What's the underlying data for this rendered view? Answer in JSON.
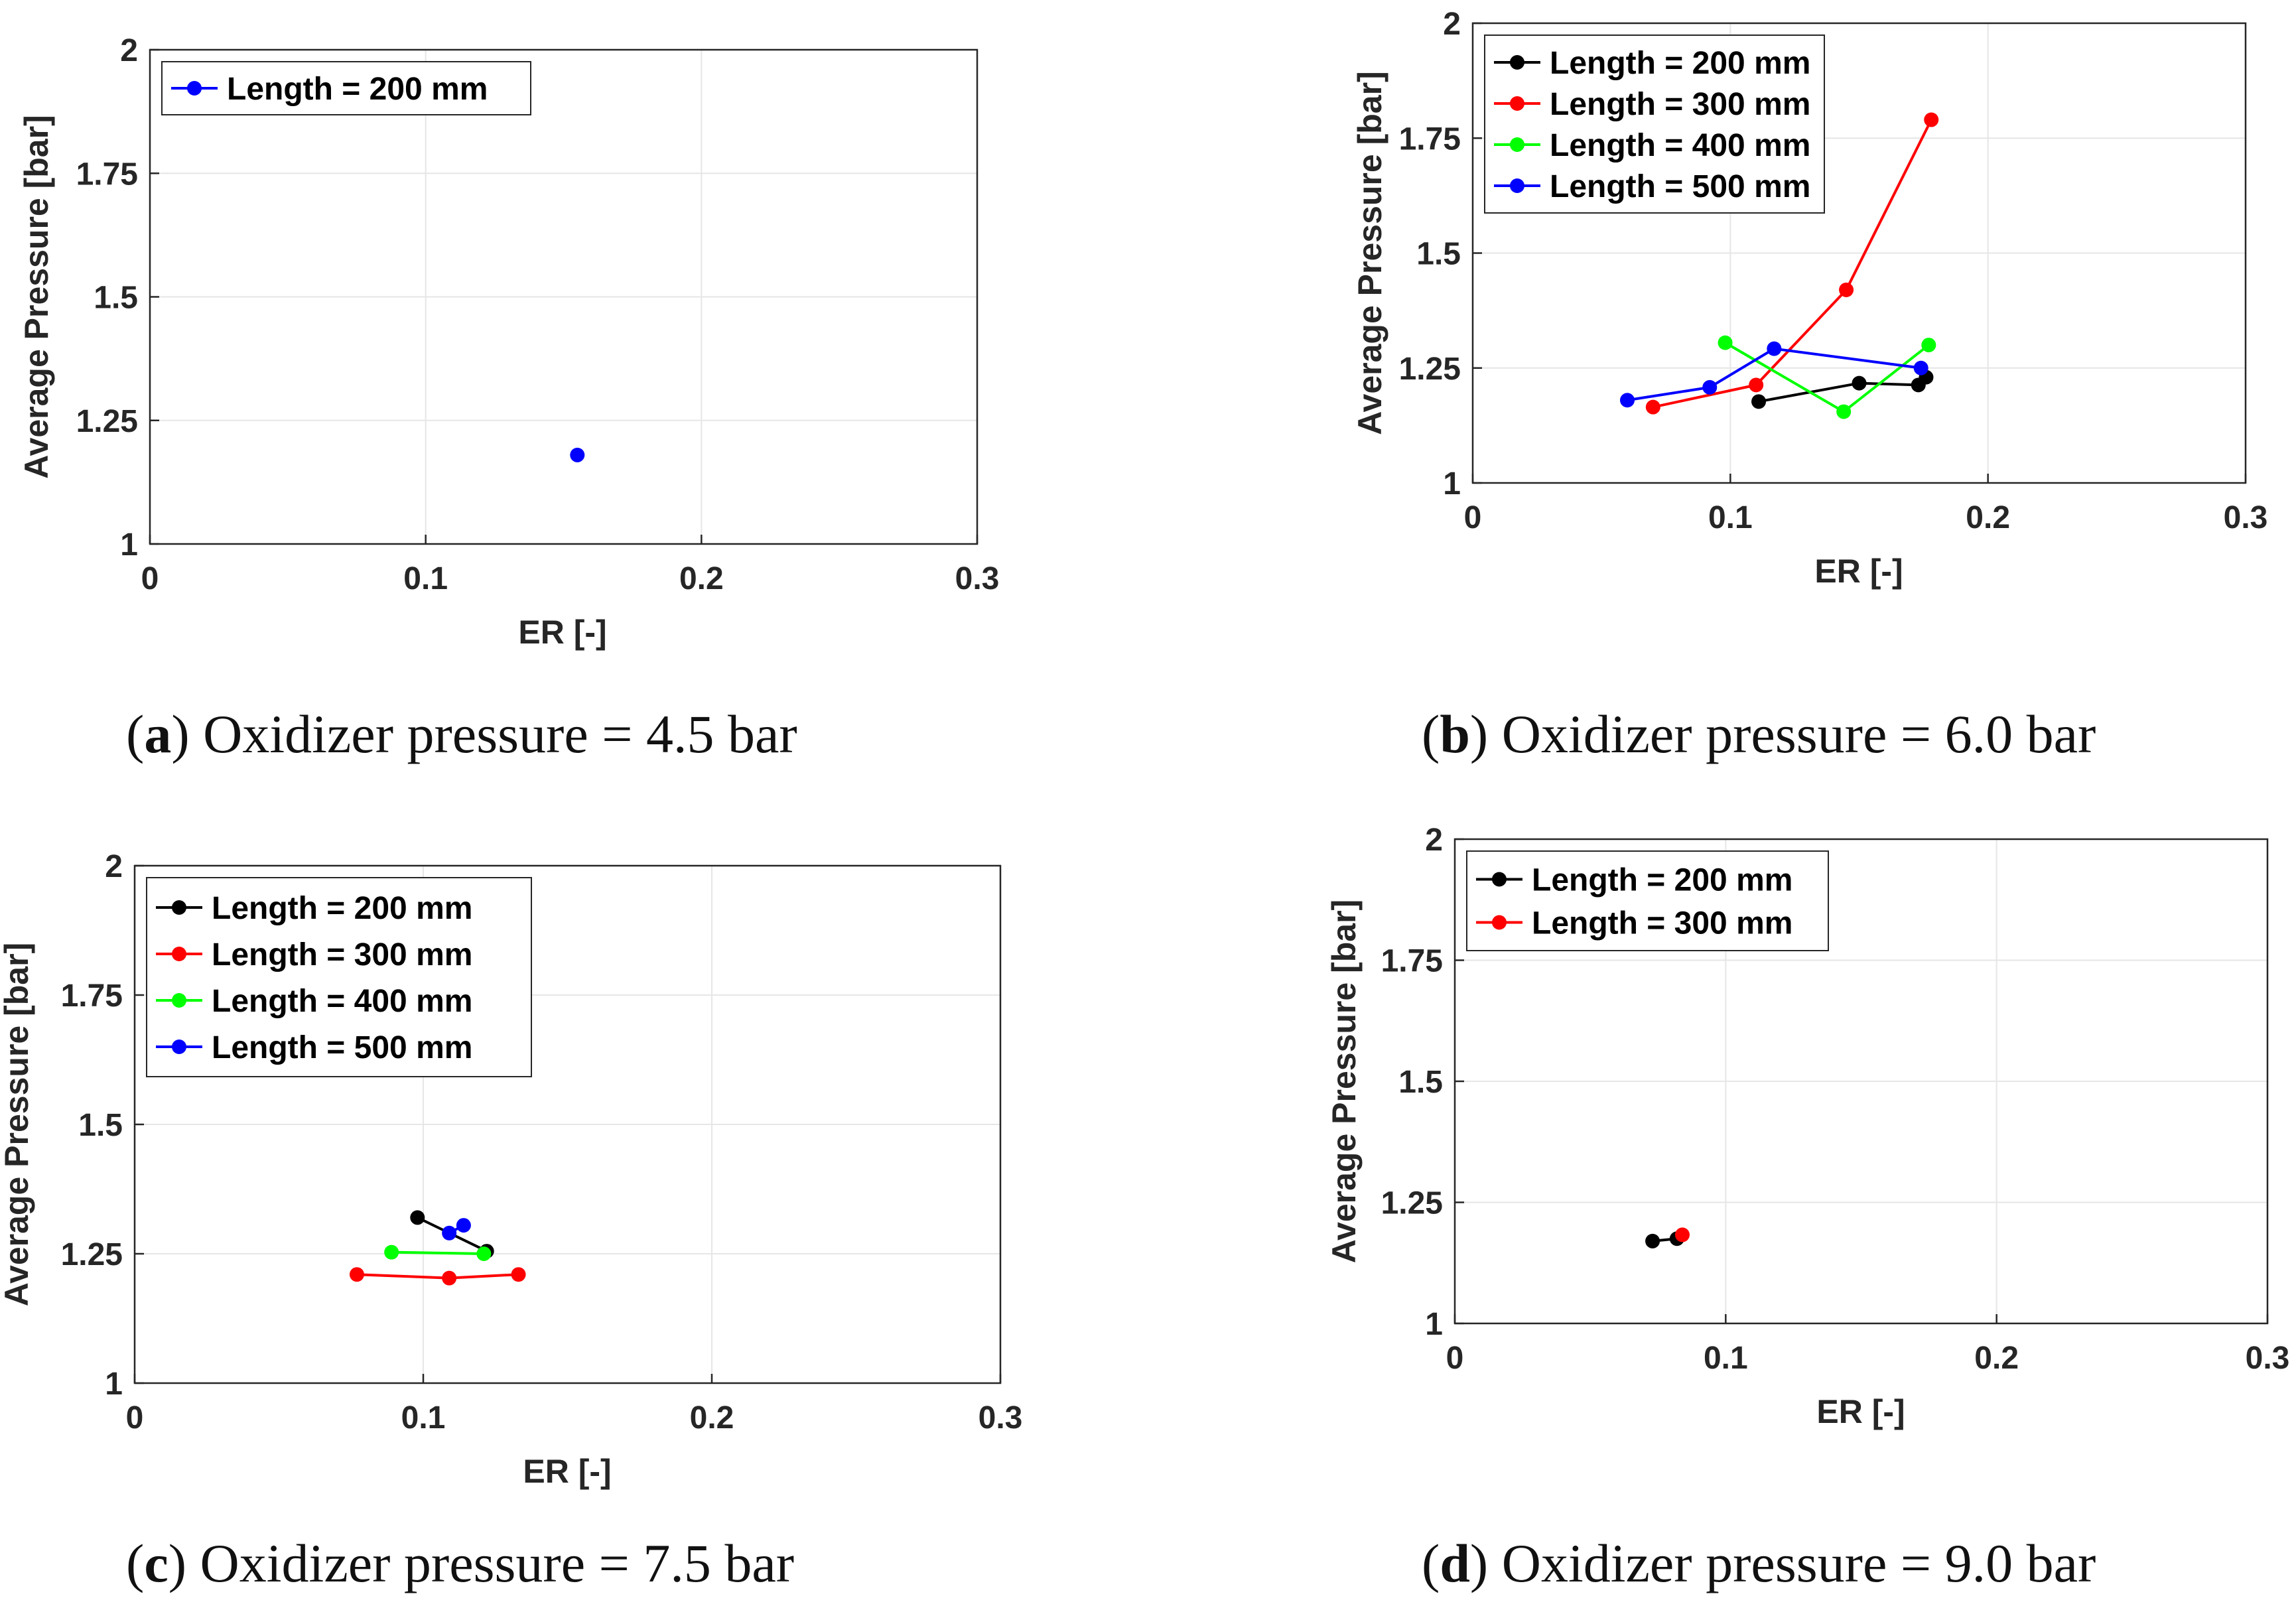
{
  "figure": {
    "panels": [
      {
        "caption_letter": "a",
        "caption_text": "Oxidizer pressure = 4.5 bar"
      },
      {
        "caption_letter": "b",
        "caption_text": "Oxidizer pressure = 6.0 bar"
      },
      {
        "caption_letter": "c",
        "caption_text": "Oxidizer pressure = 7.5 bar"
      },
      {
        "caption_letter": "d",
        "caption_text": "Oxidizer pressure = 9.0 bar"
      }
    ]
  },
  "chart_data": [
    {
      "type": "line",
      "title": "",
      "xlabel": "ER [-]",
      "ylabel": "Average Pressure [bar]",
      "xlim": [
        0,
        0.3
      ],
      "ylim": [
        1,
        2
      ],
      "xticks": [
        0,
        0.1,
        0.2,
        0.3
      ],
      "xtick_labels": [
        "0",
        "0.1",
        "0.2",
        "0.3"
      ],
      "yticks": [
        1,
        1.25,
        1.5,
        1.75,
        2
      ],
      "ytick_labels": [
        "1",
        "1.25",
        "1.5",
        "1.75",
        "2"
      ],
      "grid": true,
      "legend_position": "top-left",
      "series": [
        {
          "name": "Length = 200 mm",
          "color": "#0000ff",
          "x": [
            0.155
          ],
          "y": [
            1.18
          ]
        }
      ]
    },
    {
      "type": "line",
      "title": "",
      "xlabel": "ER [-]",
      "ylabel": "Average Pressure [bar]",
      "xlim": [
        0,
        0.3
      ],
      "ylim": [
        1,
        2
      ],
      "xticks": [
        0,
        0.1,
        0.2,
        0.3
      ],
      "xtick_labels": [
        "0",
        "0.1",
        "0.2",
        "0.3"
      ],
      "yticks": [
        1,
        1.25,
        1.5,
        1.75,
        2
      ],
      "ytick_labels": [
        "1",
        "1.25",
        "1.5",
        "1.75",
        "2"
      ],
      "grid": true,
      "legend_position": "top-left",
      "series": [
        {
          "name": "Length = 200 mm",
          "color": "#000000",
          "x": [
            0.111,
            0.15,
            0.173,
            0.176
          ],
          "y": [
            1.177,
            1.217,
            1.213,
            1.23
          ]
        },
        {
          "name": "Length = 300 mm",
          "color": "#ff0000",
          "x": [
            0.07,
            0.11,
            0.145,
            0.178
          ],
          "y": [
            1.165,
            1.213,
            1.42,
            1.79
          ]
        },
        {
          "name": "Length = 400 mm",
          "color": "#00ff00",
          "x": [
            0.098,
            0.144,
            0.177
          ],
          "y": [
            1.305,
            1.155,
            1.3
          ]
        },
        {
          "name": "Length = 500 mm",
          "color": "#0000ff",
          "x": [
            0.06,
            0.092,
            0.117,
            0.174
          ],
          "y": [
            1.18,
            1.208,
            1.292,
            1.25
          ]
        }
      ]
    },
    {
      "type": "line",
      "title": "",
      "xlabel": "ER [-]",
      "ylabel": "Average Pressure [bar]",
      "xlim": [
        0,
        0.3
      ],
      "ylim": [
        1,
        2
      ],
      "xticks": [
        0,
        0.1,
        0.2,
        0.3
      ],
      "xtick_labels": [
        "0",
        "0.1",
        "0.2",
        "0.3"
      ],
      "yticks": [
        1,
        1.25,
        1.5,
        1.75,
        2
      ],
      "ytick_labels": [
        "1",
        "1.25",
        "1.5",
        "1.75",
        "2"
      ],
      "grid": true,
      "legend_position": "top-left",
      "series": [
        {
          "name": "Length = 200 mm",
          "color": "#000000",
          "x": [
            0.098,
            0.122
          ],
          "y": [
            1.32,
            1.255
          ]
        },
        {
          "name": "Length = 300 mm",
          "color": "#ff0000",
          "x": [
            0.077,
            0.109,
            0.133
          ],
          "y": [
            1.21,
            1.203,
            1.21
          ]
        },
        {
          "name": "Length = 400 mm",
          "color": "#00ff00",
          "x": [
            0.089,
            0.121
          ],
          "y": [
            1.253,
            1.25
          ]
        },
        {
          "name": "Length = 500 mm",
          "color": "#0000ff",
          "x": [
            0.109,
            0.114
          ],
          "y": [
            1.29,
            1.305
          ]
        }
      ]
    },
    {
      "type": "line",
      "title": "",
      "xlabel": "ER [-]",
      "ylabel": "Average Pressure [bar]",
      "xlim": [
        0,
        0.3
      ],
      "ylim": [
        1,
        2
      ],
      "xticks": [
        0,
        0.1,
        0.2,
        0.3
      ],
      "xtick_labels": [
        "0",
        "0.1",
        "0.2",
        "0.3"
      ],
      "yticks": [
        1,
        1.25,
        1.5,
        1.75,
        2
      ],
      "ytick_labels": [
        "1",
        "1.25",
        "1.5",
        "1.75",
        "2"
      ],
      "grid": true,
      "legend_position": "top-left",
      "series": [
        {
          "name": "Length = 200 mm",
          "color": "#000000",
          "x": [
            0.073,
            0.082
          ],
          "y": [
            1.17,
            1.175
          ]
        },
        {
          "name": "Length = 300 mm",
          "color": "#ff0000",
          "x": [
            0.084
          ],
          "y": [
            1.183
          ]
        }
      ]
    }
  ]
}
